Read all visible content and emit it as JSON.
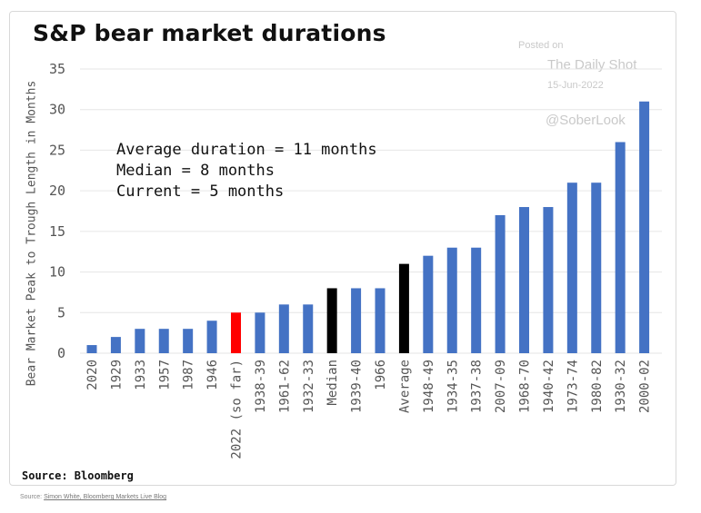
{
  "title": "S&P bear market durations",
  "watermark": {
    "posted_on": "Posted on",
    "site": "The Daily Shot",
    "date": "15-Jun-2022",
    "handle": "@SoberLook"
  },
  "stats": {
    "line1": "Average duration = 11 months",
    "line2": "Median = 8 months",
    "line3": "Current = 5 months"
  },
  "source": "Source: Bloomberg",
  "footnote": {
    "prefix": "Source: ",
    "link": "Simon White, Bloomberg Markets Live Blog"
  },
  "colors": {
    "default": "#4472c4",
    "current": "#ff0000",
    "summary": "#000000",
    "grid": "#e6e6e6"
  },
  "chart_data": {
    "type": "bar",
    "ylabel": "Bear Market Peak to Trough Length in Months",
    "ylim": [
      0,
      35
    ],
    "yticks": [
      0,
      5,
      10,
      15,
      20,
      25,
      30,
      35
    ],
    "grid": "horizontal",
    "categories": [
      "2020",
      "1929",
      "1933",
      "1957",
      "1987",
      "1946",
      "2022 (so far)",
      "1938-39",
      "1961-62",
      "1932-33",
      "Median",
      "1939-40",
      "1966",
      "Average",
      "1948-49",
      "1934-35",
      "1937-38",
      "2007-09",
      "1968-70",
      "1940-42",
      "1973-74",
      "1980-82",
      "1930-32",
      "2000-02"
    ],
    "values": [
      1,
      2,
      3,
      3,
      3,
      4,
      5,
      5,
      6,
      6,
      8,
      8,
      8,
      11,
      12,
      13,
      13,
      17,
      18,
      18,
      21,
      21,
      26,
      31
    ],
    "highlight": {
      "2022 (so far)": "current",
      "Median": "summary",
      "Average": "summary"
    }
  }
}
